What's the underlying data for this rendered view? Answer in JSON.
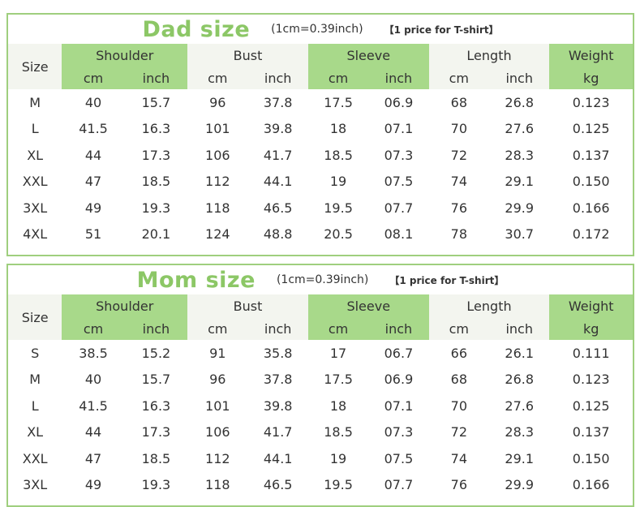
{
  "tables": [
    {
      "title": "Dad size",
      "conversion": "(1cm=0.39inch)",
      "price_note": "【1 price for T-shirt】",
      "headers": {
        "size": "Size",
        "shoulder": "Shoulder",
        "bust": "Bust",
        "sleeve": "Sleeve",
        "length": "Length",
        "weight": "Weight"
      },
      "units": [
        "cm",
        "inch",
        "cm",
        "inch",
        "cm",
        "inch",
        "cm",
        "inch",
        "kg"
      ],
      "rows": [
        [
          "M",
          "40",
          "15.7",
          "96",
          "37.8",
          "17.5",
          "06.9",
          "68",
          "26.8",
          "0.123"
        ],
        [
          "L",
          "41.5",
          "16.3",
          "101",
          "39.8",
          "18",
          "07.1",
          "70",
          "27.6",
          "0.125"
        ],
        [
          "XL",
          "44",
          "17.3",
          "106",
          "41.7",
          "18.5",
          "07.3",
          "72",
          "28.3",
          "0.137"
        ],
        [
          "XXL",
          "47",
          "18.5",
          "112",
          "44.1",
          "19",
          "07.5",
          "74",
          "29.1",
          "0.150"
        ],
        [
          "3XL",
          "49",
          "19.3",
          "118",
          "46.5",
          "19.5",
          "07.7",
          "76",
          "29.9",
          "0.166"
        ],
        [
          "4XL",
          "51",
          "20.1",
          "124",
          "48.8",
          "20.5",
          "08.1",
          "78",
          "30.7",
          "0.172"
        ]
      ]
    },
    {
      "title": "Mom size",
      "conversion": "(1cm=0.39inch)",
      "price_note": "【1 price for T-shirt】",
      "headers": {
        "size": "Size",
        "shoulder": "Shoulder",
        "bust": "Bust",
        "sleeve": "Sleeve",
        "length": "Length",
        "weight": "Weight"
      },
      "units": [
        "cm",
        "inch",
        "cm",
        "inch",
        "cm",
        "inch",
        "cm",
        "inch",
        "kg"
      ],
      "rows": [
        [
          "S",
          "38.5",
          "15.2",
          "91",
          "35.8",
          "17",
          "06.7",
          "66",
          "26.1",
          "0.111"
        ],
        [
          "M",
          "40",
          "15.7",
          "96",
          "37.8",
          "17.5",
          "06.9",
          "68",
          "26.8",
          "0.123"
        ],
        [
          "L",
          "41.5",
          "16.3",
          "101",
          "39.8",
          "18",
          "07.1",
          "70",
          "27.6",
          "0.125"
        ],
        [
          "XL",
          "44",
          "17.3",
          "106",
          "41.7",
          "18.5",
          "07.3",
          "72",
          "28.3",
          "0.137"
        ],
        [
          "XXL",
          "47",
          "18.5",
          "112",
          "44.1",
          "19",
          "07.5",
          "74",
          "29.1",
          "0.150"
        ],
        [
          "3XL",
          "49",
          "19.3",
          "118",
          "46.5",
          "19.5",
          "07.7",
          "76",
          "29.9",
          "0.166"
        ]
      ]
    }
  ],
  "colors": {
    "accent": "#8cc766",
    "header_fill": "#a8d98a",
    "light_fill": "#f3f5ef",
    "border": "#9fcf7e"
  }
}
